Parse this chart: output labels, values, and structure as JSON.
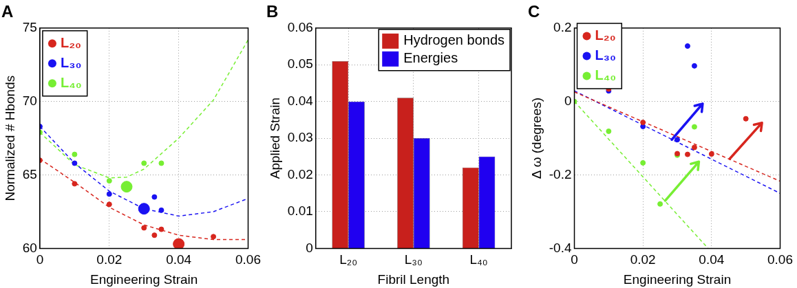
{
  "chart_data": [
    {
      "type": "scatter",
      "title": "A",
      "xlabel": "Engineering Strain",
      "ylabel": "Normalized # Hbonds",
      "xlim": [
        0,
        0.06
      ],
      "xticks": [
        0,
        0.02,
        0.04,
        0.06
      ],
      "ylim": [
        60,
        75
      ],
      "yticks": [
        60,
        65,
        70,
        75
      ],
      "grid": true,
      "legend": "top left",
      "marker": "circle",
      "series": [
        {
          "name": "L₂₀",
          "color": "#d7261e",
          "x": [
            0,
            0.01,
            0.02,
            0.03,
            0.033,
            0.035,
            0.05
          ],
          "values": [
            66.0,
            64.4,
            63.0,
            61.4,
            60.9,
            61.3,
            60.8
          ]
        },
        {
          "name": "L₃₀",
          "color": "#1a12f2",
          "x": [
            0,
            0.01,
            0.02,
            0.033,
            0.035
          ],
          "values": [
            68.3,
            65.8,
            63.7,
            63.5,
            62.6
          ]
        },
        {
          "name": "L₄₀",
          "color": "#77ee33",
          "x": [
            0,
            0.01,
            0.02,
            0.03,
            0.035
          ],
          "values": [
            67.9,
            66.4,
            64.6,
            65.8,
            65.8
          ]
        },
        {
          "type": "bubble",
          "color": "#d7261e",
          "x": [
            0.04
          ],
          "values": [
            60.3
          ],
          "sizes": [
            1
          ]
        },
        {
          "type": "bubble",
          "color": "#1a12f2",
          "x": [
            0.03
          ],
          "values": [
            62.7
          ],
          "sizes": [
            1
          ]
        },
        {
          "type": "bubble",
          "color": "#77ee33",
          "x": [
            0.025
          ],
          "values": [
            64.2
          ],
          "sizes": [
            1
          ]
        },
        {
          "type": "line",
          "line_style": "dashed",
          "marker": "none",
          "color": "#d7261e",
          "x": [
            0,
            0.01,
            0.02,
            0.03,
            0.04,
            0.05,
            0.06
          ],
          "values": [
            66.1,
            64.5,
            62.8,
            61.6,
            60.9,
            60.6,
            60.6
          ]
        },
        {
          "type": "line",
          "line_style": "dashed",
          "marker": "none",
          "color": "#1a12f2",
          "x": [
            0,
            0.01,
            0.02,
            0.03,
            0.04,
            0.05,
            0.06
          ],
          "values": [
            68.3,
            65.8,
            63.9,
            62.7,
            62.2,
            62.5,
            63.4
          ]
        },
        {
          "type": "line",
          "line_style": "dashed",
          "marker": "none",
          "color": "#77ee33",
          "x": [
            0,
            0.01,
            0.02,
            0.025,
            0.03,
            0.04,
            0.05,
            0.06
          ],
          "values": [
            67.9,
            65.7,
            64.8,
            64.85,
            65.4,
            67.5,
            70.1,
            74.2
          ]
        }
      ]
    },
    {
      "type": "bar",
      "title": "B",
      "xlabel": "Fibril Length",
      "ylabel": "Applied Strain",
      "categories": [
        "L₂₀",
        "L₃₀",
        "L₄₀"
      ],
      "ylim": [
        0,
        0.06
      ],
      "yticks": [
        0,
        0.01,
        0.02,
        0.03,
        0.04,
        0.05,
        0.06
      ],
      "grid": true,
      "legend": "top right",
      "series": [
        {
          "name": "Hydrogen bonds",
          "color": "#c8201c",
          "values": [
            0.051,
            0.041,
            0.022
          ]
        },
        {
          "name": "Energies",
          "color": "#2000f0",
          "values": [
            0.04,
            0.03,
            0.025
          ]
        }
      ]
    },
    {
      "type": "scatter",
      "title": "C",
      "xlabel": "Engineering Strain",
      "ylabel": "Δ ω (degrees)",
      "xlim": [
        0,
        0.06
      ],
      "xticks": [
        0,
        0.02,
        0.04,
        0.06
      ],
      "ylim": [
        -0.4,
        0.2
      ],
      "yticks": [
        -0.4,
        -0.2,
        0,
        0.2
      ],
      "grid": true,
      "legend": "top left",
      "marker": "circle",
      "series": [
        {
          "name": "L₂₀",
          "color": "#d7261e",
          "x": [
            0.01,
            0.02,
            0.03,
            0.033,
            0.035,
            0.04,
            0.05
          ],
          "values": [
            0.034,
            -0.057,
            -0.142,
            -0.144,
            -0.125,
            -0.143,
            -0.047
          ]
        },
        {
          "name": "L₃₀",
          "color": "#1a12f2",
          "x": [
            0.01,
            0.02,
            0.03,
            0.033,
            0.035
          ],
          "values": [
            0.029,
            -0.068,
            -0.104,
            0.151,
            0.097
          ]
        },
        {
          "name": "L₄₀",
          "color": "#77ee33",
          "x": [
            0,
            0.01,
            0.02,
            0.025,
            0.03,
            0.035
          ],
          "values": [
            0,
            -0.081,
            -0.167,
            -0.279,
            -0.146,
            -0.069
          ]
        },
        {
          "type": "line",
          "line_style": "dashed",
          "marker": "none",
          "color": "#d7261e",
          "x": [
            0,
            0.06
          ],
          "values": [
            0.026,
            -0.217
          ]
        },
        {
          "type": "line",
          "line_style": "dashed",
          "marker": "none",
          "color": "#1a12f2",
          "x": [
            0,
            0.06
          ],
          "values": [
            0.029,
            -0.25
          ]
        },
        {
          "type": "line",
          "line_style": "dashed",
          "marker": "none",
          "color": "#77ee33",
          "x": [
            0,
            0.039
          ],
          "values": [
            0,
            -0.4
          ]
        }
      ]
    }
  ]
}
